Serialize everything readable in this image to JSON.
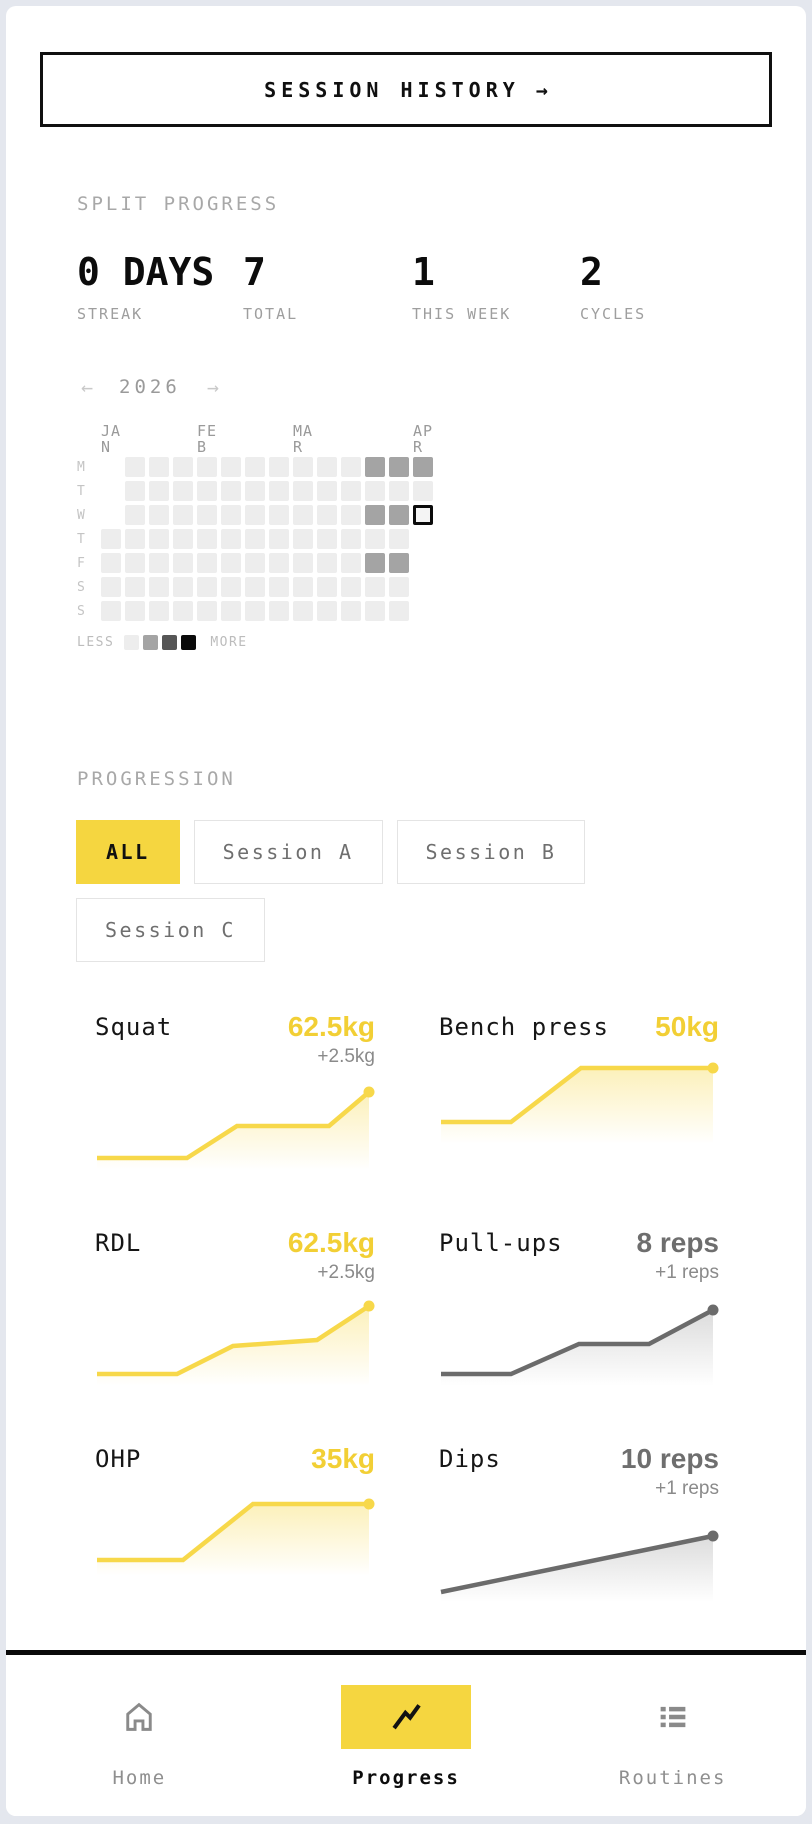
{
  "colors": {
    "accent_yellow": "#f5d640",
    "chart_yellow_line": "#f7d84a",
    "chart_gray_line": "#6b6b6b",
    "value_yellow": "#f2cf35",
    "value_gray": "#6e6e6e",
    "heat_empty": "#ededed",
    "heat_done": "#a4a4a4",
    "page_background": "#e4e7ee"
  },
  "header_button": {
    "label": "SESSION HISTORY",
    "arrow": "→"
  },
  "split_progress": {
    "title": "SPLIT PROGRESS",
    "stats": [
      {
        "value": "0 DAYS",
        "label": "STREAK"
      },
      {
        "value": "7",
        "label": "TOTAL"
      },
      {
        "value": "1",
        "label": "THIS WEEK"
      },
      {
        "value": "2",
        "label": "CYCLES"
      }
    ]
  },
  "calendar": {
    "prev_arrow": "←",
    "year": "2026",
    "next_arrow": "→",
    "months": [
      {
        "line1": "JA",
        "line2": "N",
        "col": 0
      },
      {
        "line1": "FE",
        "line2": "B",
        "col": 4
      },
      {
        "line1": "MA",
        "line2": "R",
        "col": 8
      },
      {
        "line1": "AP",
        "line2": "R",
        "col": 13
      }
    ],
    "day_labels": [
      "M",
      "T",
      "W",
      "T",
      "F",
      "S",
      "S"
    ],
    "rows": [
      [
        -1,
        0,
        0,
        0,
        0,
        0,
        0,
        0,
        0,
        0,
        0,
        1,
        1,
        1
      ],
      [
        -1,
        0,
        0,
        0,
        0,
        0,
        0,
        0,
        0,
        0,
        0,
        0,
        0,
        0
      ],
      [
        -1,
        0,
        0,
        0,
        0,
        0,
        0,
        0,
        0,
        0,
        0,
        1,
        1,
        2
      ],
      [
        0,
        0,
        0,
        0,
        0,
        0,
        0,
        0,
        0,
        0,
        0,
        0,
        0,
        -1
      ],
      [
        0,
        0,
        0,
        0,
        0,
        0,
        0,
        0,
        0,
        0,
        0,
        1,
        1,
        -1
      ],
      [
        0,
        0,
        0,
        0,
        0,
        0,
        0,
        0,
        0,
        0,
        0,
        0,
        0,
        -1
      ],
      [
        0,
        0,
        0,
        0,
        0,
        0,
        0,
        0,
        0,
        0,
        0,
        0,
        0,
        -1
      ]
    ],
    "legend": {
      "less_label": "LESS",
      "more_label": "MORE",
      "levels": [
        "#ededed",
        "#a4a4a4",
        "#565656",
        "#0a0a0a"
      ]
    }
  },
  "progression": {
    "title": "PROGRESSION",
    "filters": [
      {
        "label": "ALL",
        "active": true
      },
      {
        "label": "Session A",
        "active": false
      },
      {
        "label": "Session B",
        "active": false
      },
      {
        "label": "Session C",
        "active": false
      }
    ]
  },
  "chart_data": [
    {
      "type": "line",
      "name": "Squat",
      "value": "62.5kg",
      "delta": "+2.5kg",
      "kind": "kg",
      "points": [
        [
          2,
          80
        ],
        [
          92,
          80
        ],
        [
          142,
          48
        ],
        [
          234,
          48
        ],
        [
          274,
          14
        ]
      ]
    },
    {
      "type": "line",
      "name": "Bench press",
      "value": "50kg",
      "delta": null,
      "kind": "kg",
      "points": [
        [
          2,
          70
        ],
        [
          72,
          70
        ],
        [
          142,
          16
        ],
        [
          274,
          16
        ]
      ]
    },
    {
      "type": "line",
      "name": "RDL",
      "value": "62.5kg",
      "delta": "+2.5kg",
      "kind": "kg",
      "points": [
        [
          2,
          80
        ],
        [
          82,
          80
        ],
        [
          138,
          52
        ],
        [
          222,
          46
        ],
        [
          274,
          12
        ]
      ]
    },
    {
      "type": "line",
      "name": "Pull-ups",
      "value": "8 reps",
      "delta": "+1 reps",
      "kind": "reps",
      "points": [
        [
          2,
          80
        ],
        [
          72,
          80
        ],
        [
          140,
          50
        ],
        [
          210,
          50
        ],
        [
          274,
          16
        ]
      ]
    },
    {
      "type": "line",
      "name": "OHP",
      "value": "35kg",
      "delta": null,
      "kind": "kg",
      "points": [
        [
          2,
          76
        ],
        [
          88,
          76
        ],
        [
          158,
          20
        ],
        [
          274,
          20
        ]
      ]
    },
    {
      "type": "line",
      "name": "Dips",
      "value": "10 reps",
      "delta": "+1 reps",
      "kind": "reps",
      "points": [
        [
          2,
          82
        ],
        [
          274,
          26
        ]
      ]
    }
  ],
  "bottom_nav": {
    "items": [
      {
        "label": "Home",
        "icon": "home-icon",
        "active": false
      },
      {
        "label": "Progress",
        "icon": "trend-icon",
        "active": true
      },
      {
        "label": "Routines",
        "icon": "list-icon",
        "active": false
      }
    ]
  }
}
